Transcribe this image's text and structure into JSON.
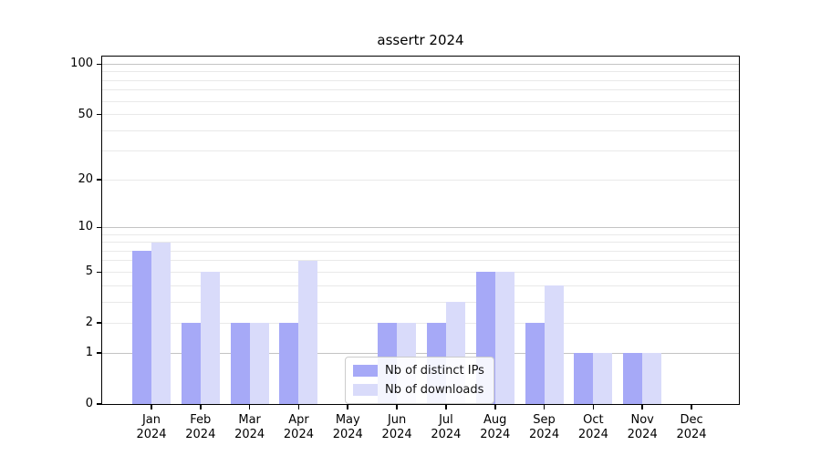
{
  "chart_data": {
    "type": "bar",
    "title": "assertr 2024",
    "categories": [
      "Jan",
      "Feb",
      "Mar",
      "Apr",
      "May",
      "Jun",
      "Jul",
      "Aug",
      "Sep",
      "Oct",
      "Nov",
      "Dec"
    ],
    "year_label": "2024",
    "series": [
      {
        "name": "Nb of distinct IPs",
        "color": "#a6a9f7",
        "values": [
          7,
          2,
          2,
          2,
          0,
          2,
          2,
          5,
          2,
          1,
          1,
          0
        ]
      },
      {
        "name": "Nb of downloads",
        "color": "#d9dbfa",
        "values": [
          8,
          5,
          2,
          6,
          0,
          2,
          3,
          5,
          4,
          1,
          1,
          0
        ]
      }
    ],
    "y_axis": {
      "scale": "log1p",
      "ylim": [
        0,
        111
      ],
      "ticks": [
        0,
        1,
        2,
        5,
        10,
        20,
        50,
        100
      ],
      "decade_grid_values": [
        1,
        10,
        100
      ],
      "light_grid_values": [
        2,
        5,
        20,
        50
      ],
      "minor_grid_values": [
        3,
        4,
        6,
        7,
        8,
        9,
        30,
        40,
        60,
        70,
        80,
        90
      ]
    },
    "legend": {
      "position": "inside-bottom-center"
    },
    "colors": {
      "grid_decade": "#c4c4c4",
      "grid_light": "#e9e9e9",
      "spine": "#000000",
      "background": "#ffffff"
    },
    "grid_on": true
  }
}
